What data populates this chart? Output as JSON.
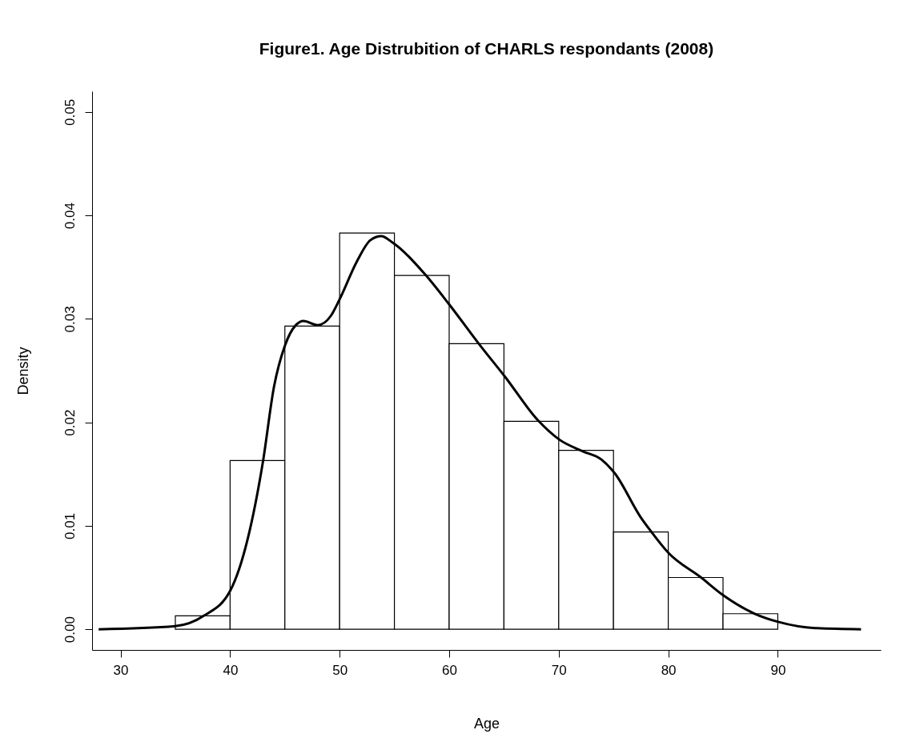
{
  "chart_data": {
    "type": "histogram",
    "title": "Figure1. Age Distrubition of CHARLS respondants (2008)",
    "xlabel": "Age",
    "ylabel": "Density",
    "bins": [
      35,
      40,
      45,
      50,
      55,
      60,
      65,
      70,
      75,
      80,
      85,
      90
    ],
    "values": [
      0.0013,
      0.0163,
      0.0293,
      0.0383,
      0.0342,
      0.0276,
      0.0201,
      0.0173,
      0.0094,
      0.005,
      0.0015
    ],
    "color": "#ffffff",
    "series": [
      {
        "type": "line",
        "color": "#000000",
        "x": [
          28,
          35,
          37.6,
          40,
          41.6,
          43,
          44,
          45,
          46,
          46.7,
          48,
          49.2,
          50,
          51.6,
          52.8,
          53.8,
          54.8,
          57.8,
          60,
          62.7,
          65.1,
          68.1,
          70.1,
          72.2,
          73.9,
          75.1,
          77.5,
          78.4,
          80,
          83,
          85,
          87.9,
          90.1,
          93.6,
          97.6
        ],
        "values": [
          0,
          0.0003,
          0.0013,
          0.0037,
          0.0087,
          0.0162,
          0.0234,
          0.0274,
          0.0294,
          0.0298,
          0.0294,
          0.0303,
          0.0319,
          0.0356,
          0.0376,
          0.038,
          0.0374,
          0.0343,
          0.0314,
          0.0276,
          0.0244,
          0.0202,
          0.0183,
          0.0172,
          0.0164,
          0.0151,
          0.0108,
          0.0095,
          0.0074,
          0.005,
          0.0033,
          0.0015,
          0.0007,
          0.0001,
          0
        ]
      }
    ],
    "xlim": [
      27.4,
      99.4
    ],
    "xticks": [
      30,
      40,
      50,
      60,
      70,
      80,
      90
    ],
    "ylim": [
      -0.002,
      0.052
    ],
    "yticks": [
      {
        "value": 0,
        "label": "0.00"
      },
      {
        "value": 0.01,
        "label": "0.01"
      },
      {
        "value": 0.02,
        "label": "0.02"
      },
      {
        "value": 0.03,
        "label": "0.03"
      },
      {
        "value": 0.04,
        "label": "0.04"
      },
      {
        "value": 0.05,
        "label": "0.05"
      }
    ]
  }
}
